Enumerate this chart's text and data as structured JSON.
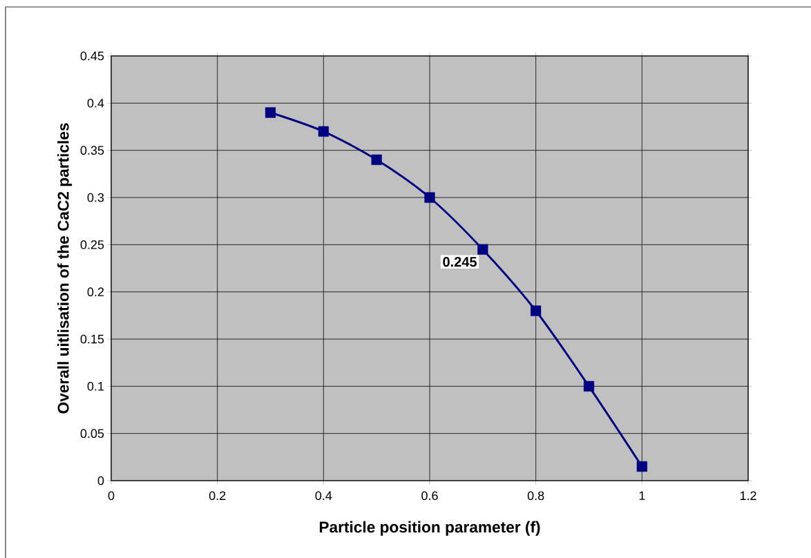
{
  "chart_data": {
    "type": "line",
    "xlabel": "Particle position parameter (f)",
    "ylabel": "Overall uitlisation of the CaC2 particles",
    "x": [
      0.3,
      0.4,
      0.5,
      0.6,
      0.7,
      0.8,
      0.9,
      1.0
    ],
    "series": [
      {
        "color": "#000080",
        "values": [
          0.39,
          0.37,
          0.34,
          0.3,
          0.245,
          0.18,
          0.1,
          0.015
        ],
        "value_labels": [
          null,
          null,
          null,
          null,
          "0.245",
          null,
          null,
          null
        ]
      }
    ],
    "xlim": [
      0,
      1.2
    ],
    "xticks": [
      0,
      0.2,
      0.4,
      0.6,
      0.8,
      1,
      1.2
    ],
    "ylim": [
      0,
      0.45
    ],
    "yticks": [
      0,
      0.05,
      0.1,
      0.15,
      0.2,
      0.25,
      0.3,
      0.35,
      0.4,
      0.45
    ],
    "grid": true,
    "marker": "square",
    "line_style": "solid"
  }
}
